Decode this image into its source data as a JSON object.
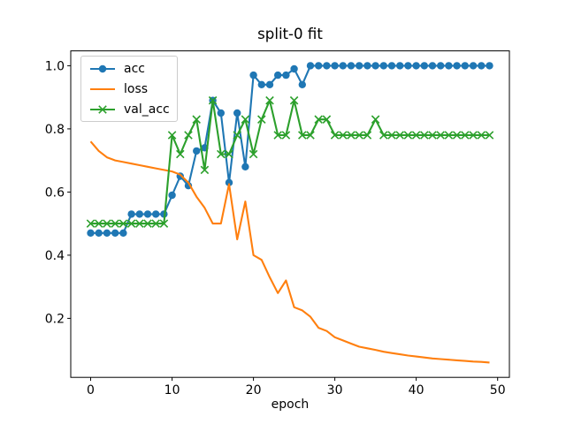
{
  "chart_data": {
    "type": "line",
    "title": "split-0 fit",
    "xlabel": "epoch",
    "ylabel": "",
    "grid": false,
    "legend_position": "upper left",
    "xlim": [
      -2.45,
      51.45
    ],
    "ylim": [
      0.013,
      1.047
    ],
    "xtick_values": [
      0,
      10,
      20,
      30,
      40,
      50
    ],
    "xtick_labels": [
      "0",
      "10",
      "20",
      "30",
      "40",
      "50"
    ],
    "ytick_values": [
      0.2,
      0.4,
      0.6,
      0.8,
      1.0
    ],
    "ytick_labels": [
      "0.2",
      "0.4",
      "0.6",
      "0.8",
      "1.0"
    ],
    "x": [
      0,
      1,
      2,
      3,
      4,
      5,
      6,
      7,
      8,
      9,
      10,
      11,
      12,
      13,
      14,
      15,
      16,
      17,
      18,
      19,
      20,
      21,
      22,
      23,
      24,
      25,
      26,
      27,
      28,
      29,
      30,
      31,
      32,
      33,
      34,
      35,
      36,
      37,
      38,
      39,
      40,
      41,
      42,
      43,
      44,
      45,
      46,
      47,
      48,
      49
    ],
    "series": [
      {
        "name": "acc",
        "color": "#1f77b4",
        "marker": "circle",
        "values": [
          0.47,
          0.47,
          0.47,
          0.47,
          0.47,
          0.53,
          0.53,
          0.53,
          0.53,
          0.53,
          0.59,
          0.65,
          0.62,
          0.73,
          0.74,
          0.89,
          0.85,
          0.63,
          0.85,
          0.68,
          0.97,
          0.94,
          0.94,
          0.97,
          0.97,
          0.99,
          0.94,
          1.0,
          1.0,
          1.0,
          1.0,
          1.0,
          1.0,
          1.0,
          1.0,
          1.0,
          1.0,
          1.0,
          1.0,
          1.0,
          1.0,
          1.0,
          1.0,
          1.0,
          1.0,
          1.0,
          1.0,
          1.0,
          1.0,
          1.0
        ]
      },
      {
        "name": "loss",
        "color": "#ff7f0e",
        "marker": "none",
        "values": [
          0.76,
          0.73,
          0.71,
          0.7,
          0.695,
          0.69,
          0.685,
          0.68,
          0.675,
          0.67,
          0.665,
          0.655,
          0.63,
          0.585,
          0.55,
          0.5,
          0.5,
          0.625,
          0.45,
          0.57,
          0.4,
          0.385,
          0.33,
          0.28,
          0.32,
          0.235,
          0.225,
          0.205,
          0.17,
          0.16,
          0.14,
          0.13,
          0.12,
          0.11,
          0.105,
          0.1,
          0.094,
          0.09,
          0.086,
          0.082,
          0.079,
          0.076,
          0.073,
          0.071,
          0.069,
          0.067,
          0.065,
          0.063,
          0.062,
          0.06
        ]
      },
      {
        "name": "val_acc",
        "color": "#2ca02c",
        "marker": "x",
        "values": [
          0.5,
          0.5,
          0.5,
          0.5,
          0.5,
          0.5,
          0.5,
          0.5,
          0.5,
          0.5,
          0.78,
          0.72,
          0.78,
          0.83,
          0.67,
          0.89,
          0.72,
          0.72,
          0.78,
          0.83,
          0.72,
          0.83,
          0.89,
          0.78,
          0.78,
          0.89,
          0.78,
          0.78,
          0.83,
          0.83,
          0.78,
          0.78,
          0.78,
          0.78,
          0.78,
          0.83,
          0.78,
          0.78,
          0.78,
          0.78,
          0.78,
          0.78,
          0.78,
          0.78,
          0.78,
          0.78,
          0.78,
          0.78,
          0.78,
          0.78
        ]
      }
    ]
  }
}
